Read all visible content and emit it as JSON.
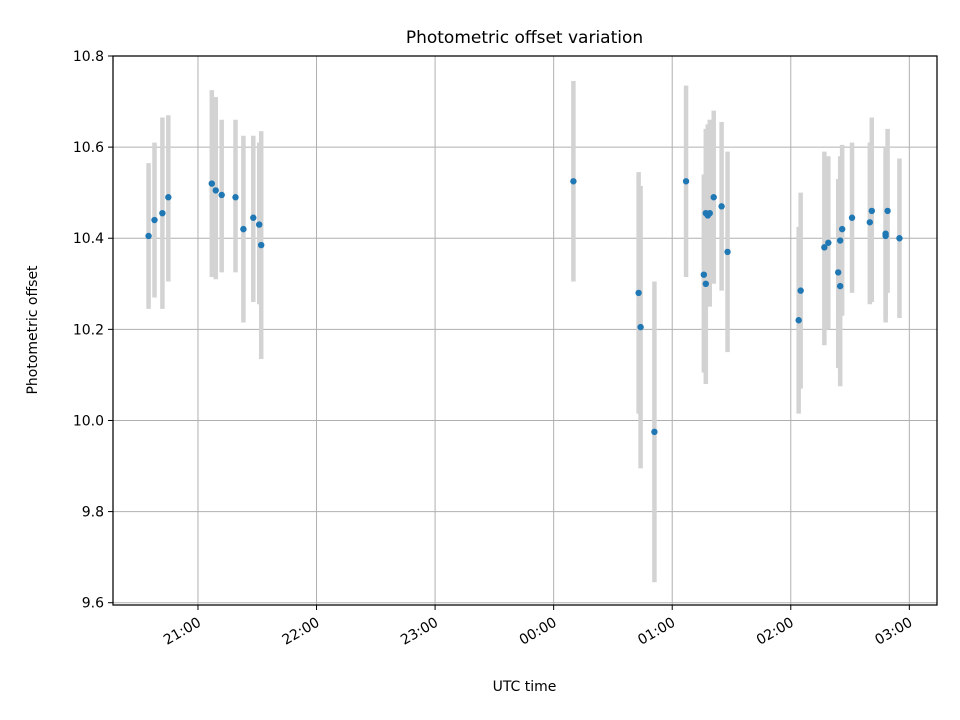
{
  "chart_data": {
    "type": "scatter",
    "title": "Photometric offset variation",
    "xlabel": "UTC time",
    "ylabel": "Photometric offset",
    "xlim": [
      "20:17",
      "03:14"
    ],
    "ylim": [
      9.595,
      10.8
    ],
    "grid": true,
    "yticks": [
      {
        "value": 9.6,
        "label": "9.6"
      },
      {
        "value": 9.8,
        "label": "9.8"
      },
      {
        "value": 10.0,
        "label": "10.0"
      },
      {
        "value": 10.2,
        "label": "10.2"
      },
      {
        "value": 10.4,
        "label": "10.4"
      },
      {
        "value": 10.6,
        "label": "10.6"
      },
      {
        "value": 10.8,
        "label": "10.8"
      }
    ],
    "xticks": [
      {
        "value": "21:00",
        "label": "21:00"
      },
      {
        "value": "22:00",
        "label": "22:00"
      },
      {
        "value": "23:00",
        "label": "23:00"
      },
      {
        "value": "00:00",
        "label": "00:00"
      },
      {
        "value": "01:00",
        "label": "01:00"
      },
      {
        "value": "02:00",
        "label": "02:00"
      },
      {
        "value": "03:00",
        "label": "03:00"
      }
    ],
    "colors": {
      "marker": "#1f77b4",
      "errorbar": "#d3d3d3",
      "grid": "#b0b0b0"
    },
    "series": [
      {
        "points": [
          {
            "x": "20:35",
            "y": 10.405,
            "low": 10.245,
            "high": 10.565
          },
          {
            "x": "20:38",
            "y": 10.44,
            "low": 10.27,
            "high": 10.61
          },
          {
            "x": "20:42",
            "y": 10.455,
            "low": 10.245,
            "high": 10.665
          },
          {
            "x": "20:45",
            "y": 10.49,
            "low": 10.305,
            "high": 10.67
          },
          {
            "x": "21:07",
            "y": 10.52,
            "low": 10.315,
            "high": 10.725
          },
          {
            "x": "21:09",
            "y": 10.505,
            "low": 10.31,
            "high": 10.71
          },
          {
            "x": "21:12",
            "y": 10.495,
            "low": 10.325,
            "high": 10.66
          },
          {
            "x": "21:19",
            "y": 10.49,
            "low": 10.325,
            "high": 10.66
          },
          {
            "x": "21:23",
            "y": 10.42,
            "low": 10.215,
            "high": 10.625
          },
          {
            "x": "21:28",
            "y": 10.445,
            "low": 10.26,
            "high": 10.625
          },
          {
            "x": "21:31",
            "y": 10.43,
            "low": 10.255,
            "high": 10.61
          },
          {
            "x": "21:32",
            "y": 10.385,
            "low": 10.135,
            "high": 10.635
          },
          {
            "x": "00:10",
            "y": 10.525,
            "low": 10.305,
            "high": 10.745
          },
          {
            "x": "00:43",
            "y": 10.28,
            "low": 10.015,
            "high": 10.545
          },
          {
            "x": "00:44",
            "y": 10.205,
            "low": 9.895,
            "high": 10.515
          },
          {
            "x": "00:51",
            "y": 9.975,
            "low": 9.645,
            "high": 10.305
          },
          {
            "x": "01:07",
            "y": 10.525,
            "low": 10.315,
            "high": 10.735
          },
          {
            "x": "01:16",
            "y": 10.32,
            "low": 10.105,
            "high": 10.54
          },
          {
            "x": "01:17",
            "y": 10.3,
            "low": 10.08,
            "high": 10.52
          },
          {
            "x": "01:17",
            "y": 10.455,
            "low": 10.265,
            "high": 10.64
          },
          {
            "x": "01:18",
            "y": 10.45,
            "low": 10.25,
            "high": 10.65
          },
          {
            "x": "01:19",
            "y": 10.455,
            "low": 10.25,
            "high": 10.66
          },
          {
            "x": "01:21",
            "y": 10.49,
            "low": 10.3,
            "high": 10.68
          },
          {
            "x": "01:25",
            "y": 10.47,
            "low": 10.285,
            "high": 10.655
          },
          {
            "x": "01:28",
            "y": 10.37,
            "low": 10.15,
            "high": 10.59
          },
          {
            "x": "02:04",
            "y": 10.22,
            "low": 10.015,
            "high": 10.425
          },
          {
            "x": "02:05",
            "y": 10.285,
            "low": 10.07,
            "high": 10.5
          },
          {
            "x": "02:17",
            "y": 10.38,
            "low": 10.165,
            "high": 10.59
          },
          {
            "x": "02:19",
            "y": 10.39,
            "low": 10.2,
            "high": 10.58
          },
          {
            "x": "02:24",
            "y": 10.325,
            "low": 10.115,
            "high": 10.53
          },
          {
            "x": "02:25",
            "y": 10.295,
            "low": 10.075,
            "high": 10.515
          },
          {
            "x": "02:25",
            "y": 10.395,
            "low": 10.21,
            "high": 10.58
          },
          {
            "x": "02:26",
            "y": 10.42,
            "low": 10.23,
            "high": 10.605
          },
          {
            "x": "02:31",
            "y": 10.445,
            "low": 10.28,
            "high": 10.61
          },
          {
            "x": "02:40",
            "y": 10.435,
            "low": 10.255,
            "high": 10.61
          },
          {
            "x": "02:41",
            "y": 10.46,
            "low": 10.26,
            "high": 10.665
          },
          {
            "x": "02:48",
            "y": 10.41,
            "low": 10.215,
            "high": 10.6
          },
          {
            "x": "02:48",
            "y": 10.405,
            "low": 10.225,
            "high": 10.59
          },
          {
            "x": "02:49",
            "y": 10.46,
            "low": 10.28,
            "high": 10.64
          },
          {
            "x": "02:55",
            "y": 10.4,
            "low": 10.225,
            "high": 10.575
          }
        ]
      }
    ]
  }
}
